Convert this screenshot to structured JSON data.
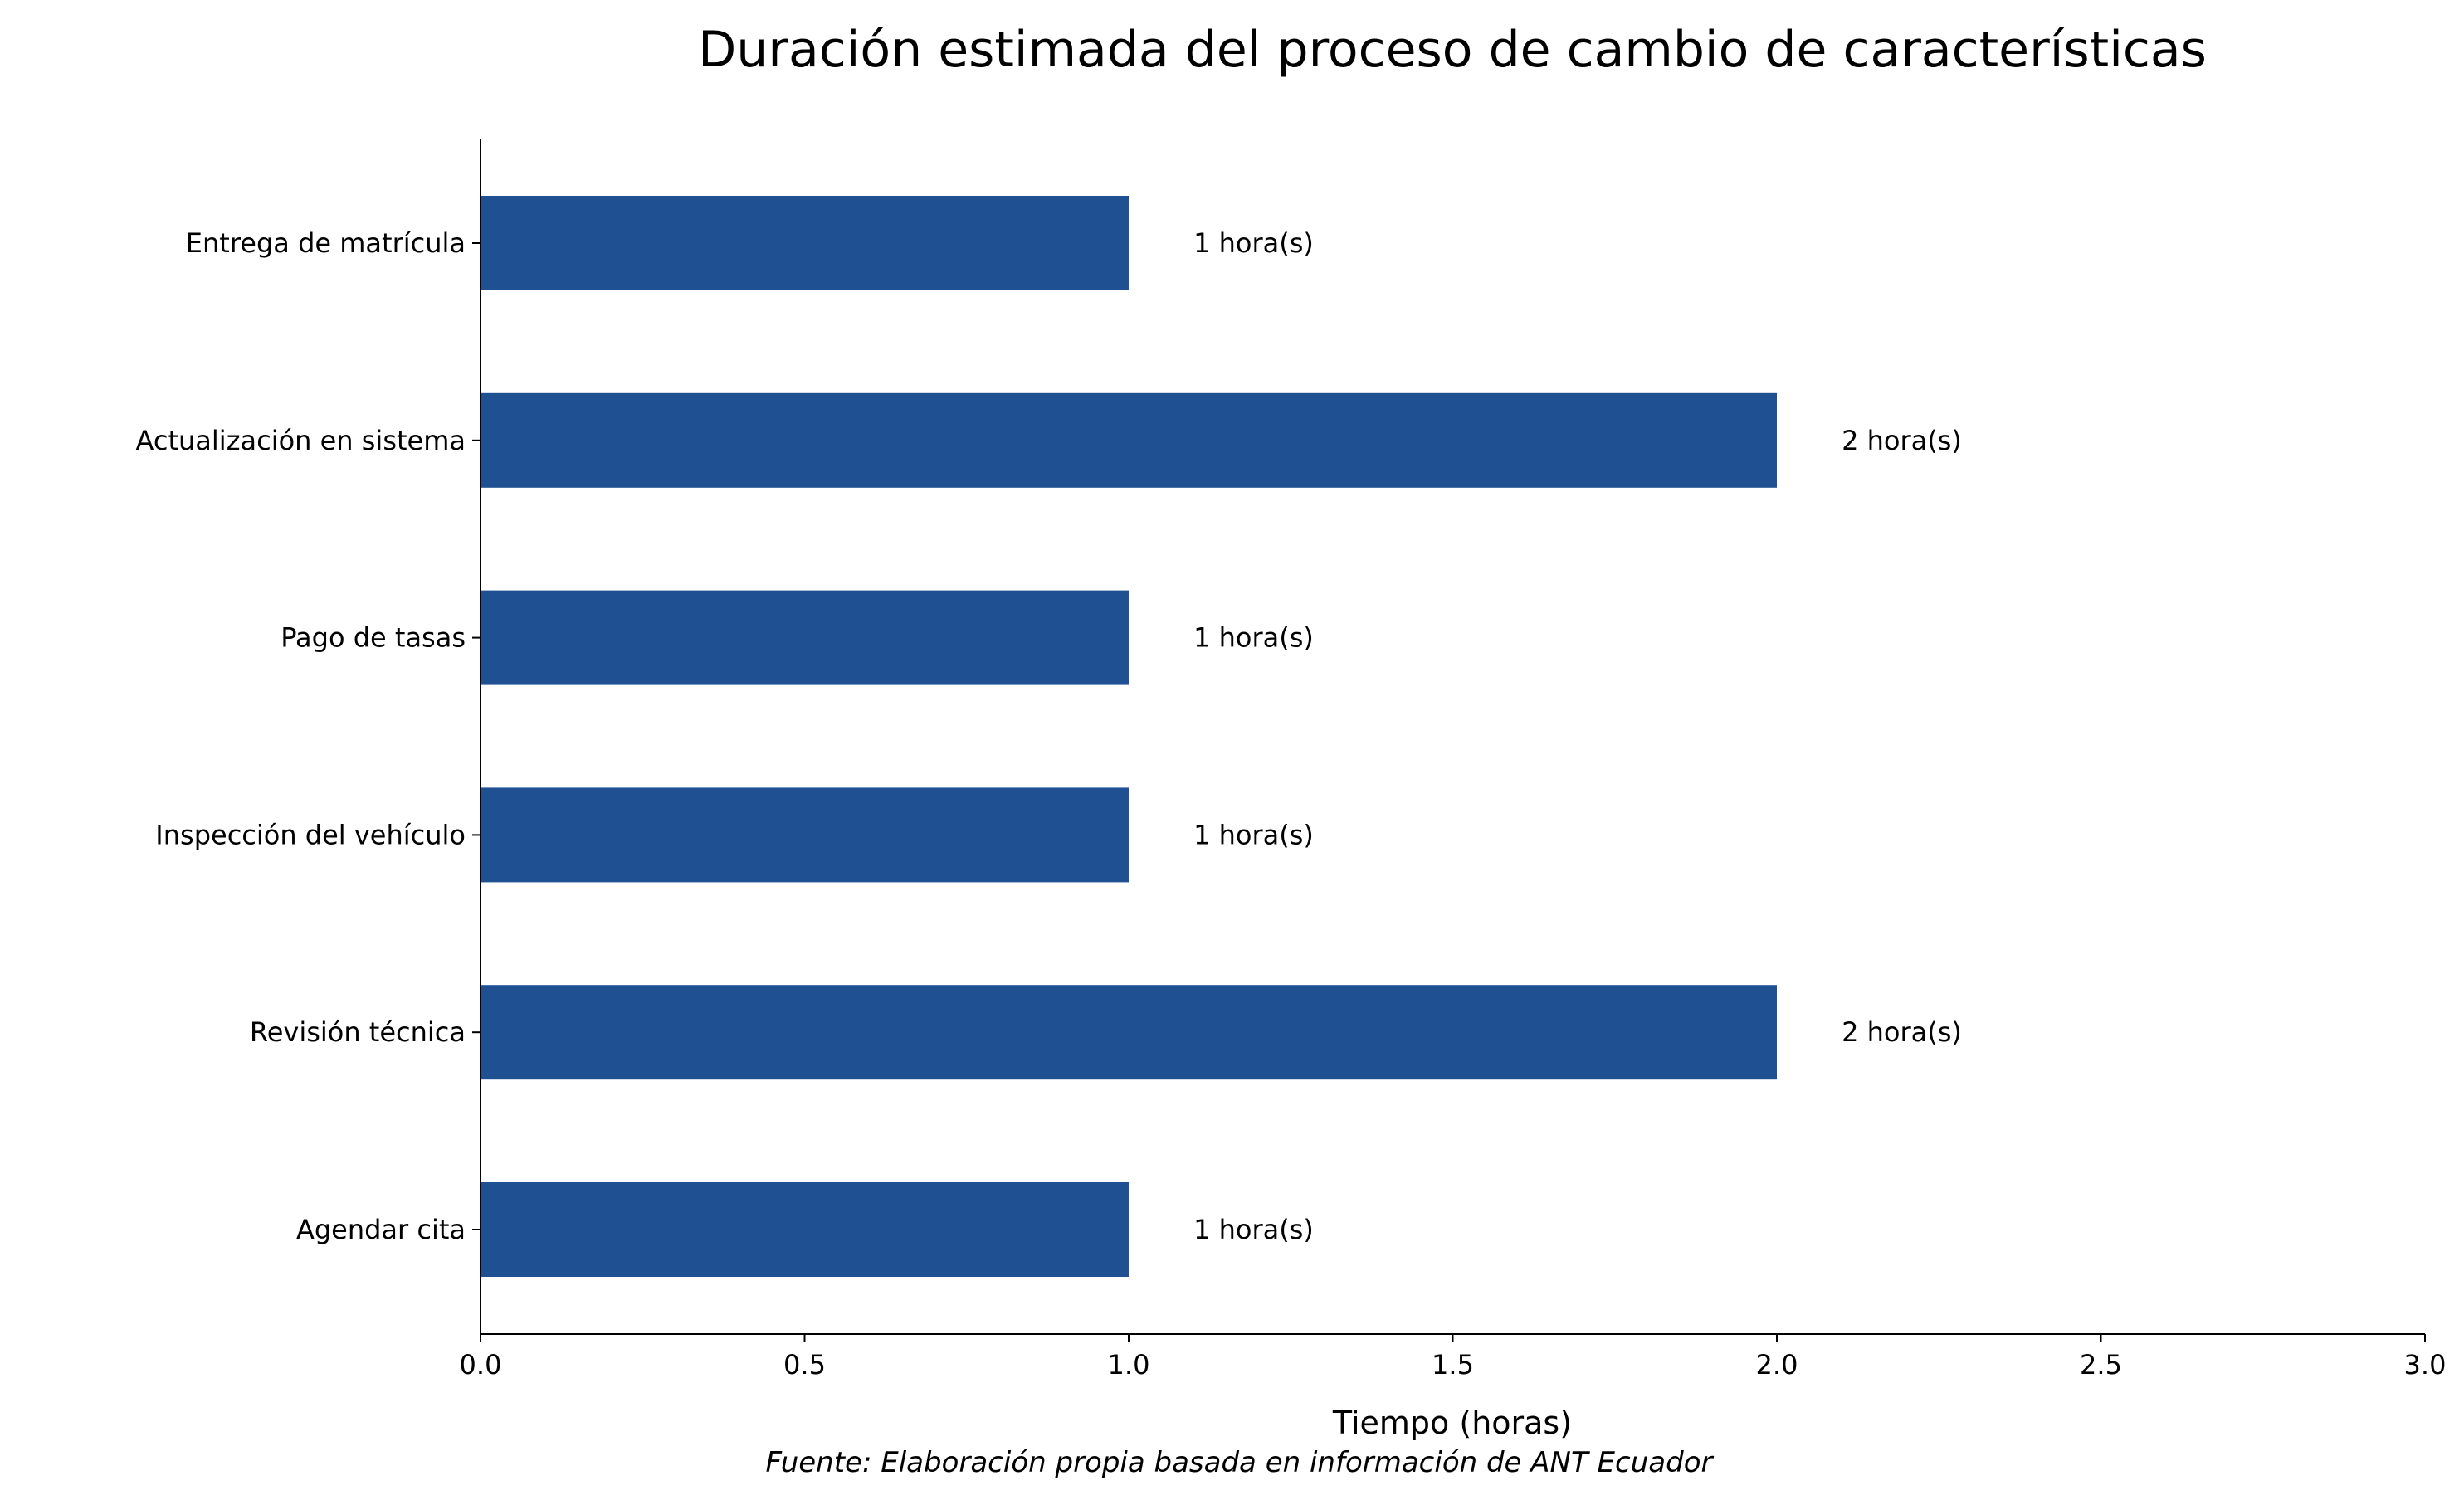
{
  "chart_data": {
    "type": "bar",
    "orientation": "horizontal",
    "title": "Duración estimada del proceso de cambio de características",
    "xlabel": "Tiempo (horas)",
    "ylabel": "",
    "xlim": [
      0,
      3
    ],
    "xticks": [
      "0.0",
      "0.5",
      "1.0",
      "1.5",
      "2.0",
      "2.5",
      "3.0"
    ],
    "categories": [
      "Agendar cita",
      "Revisión técnica",
      "Inspección del vehículo",
      "Pago de tasas",
      "Actualización en sistema",
      "Entrega de matrícula"
    ],
    "values": [
      1,
      2,
      1,
      1,
      2,
      1
    ],
    "data_labels": [
      "1 hora(s)",
      "2 hora(s)",
      "1 hora(s)",
      "1 hora(s)",
      "2 hora(s)",
      "1 hora(s)"
    ],
    "bar_color": "#1f5192",
    "grid": false,
    "source": "Fuente: Elaboración propia basada en información de ANT Ecuador"
  }
}
